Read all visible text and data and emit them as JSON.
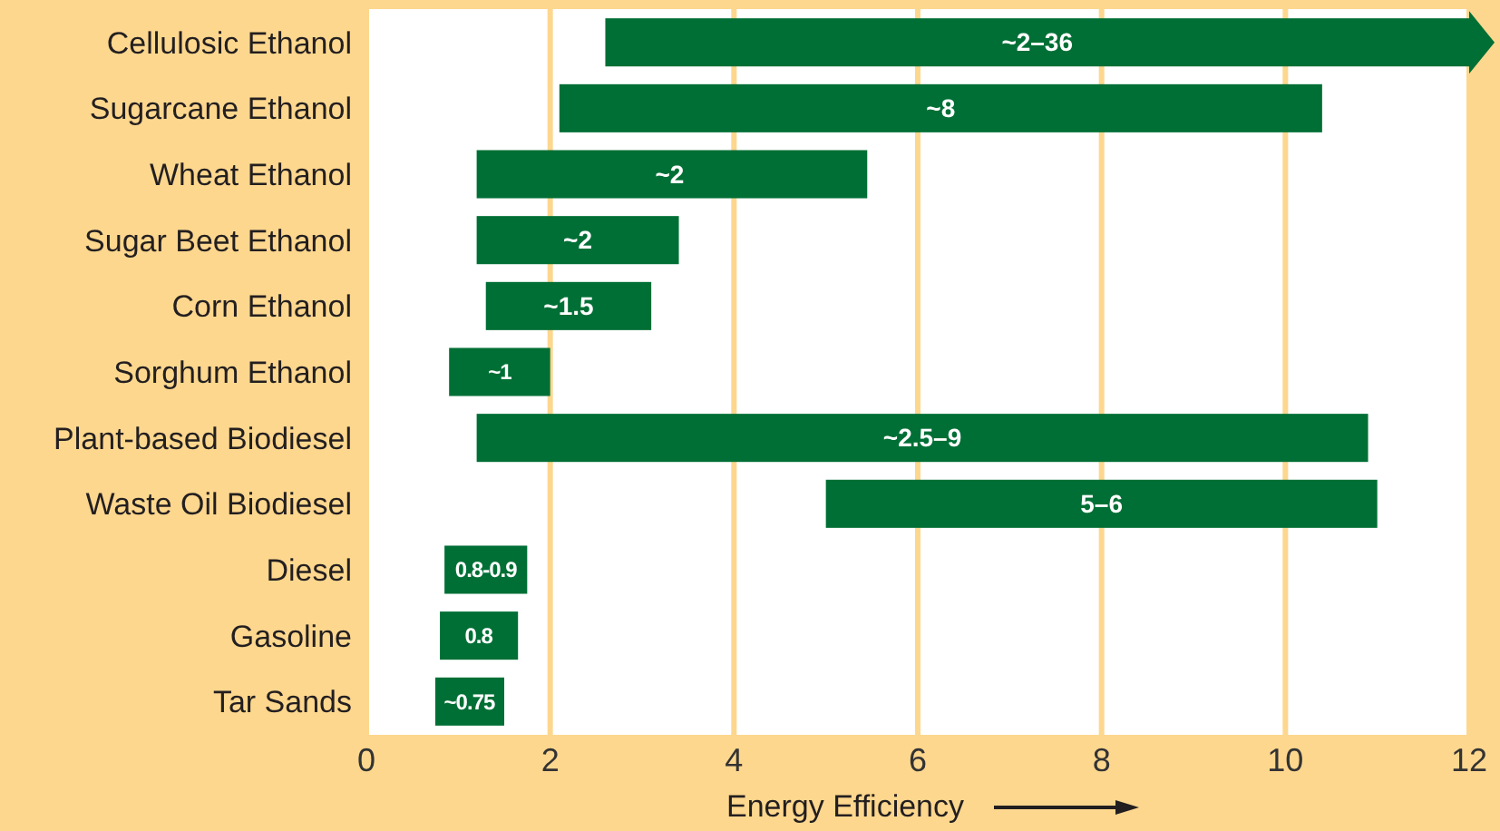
{
  "chart_data": {
    "type": "bar",
    "orientation": "horizontal",
    "xlabel": "Energy Efficiency",
    "categories": [
      "Cellulosic Ethanol",
      "Sugarcane Ethanol",
      "Wheat Ethanol",
      "Sugar Beet Ethanol",
      "Corn Ethanol",
      "Sorghum Ethanol",
      "Plant-based Biodiesel",
      "Waste Oil Biodiesel",
      "Diesel",
      "Gasoline",
      "Tar Sands"
    ],
    "base": [
      2.6,
      2.1,
      1.2,
      1.2,
      1.3,
      0.9,
      1.2,
      5,
      0.85,
      0.8,
      0.75
    ],
    "values": [
      9.4,
      8.3,
      4.25,
      2.2,
      1.8,
      1.1,
      9.7,
      6,
      0.9,
      0.85,
      0.75
    ],
    "annotations": [
      {
        "text": "~2–36",
        "x": 7.3,
        "y": "Cellulosic Ethanol"
      },
      {
        "text": "~8",
        "x": 6.25,
        "y": "Sugarcane Ethanol"
      },
      {
        "text": "~2",
        "x": 3.3,
        "y": "Wheat Ethanol"
      },
      {
        "text": "~2",
        "x": 2.3,
        "y": "Sugar Beet Ethanol"
      },
      {
        "text": "~1.5",
        "x": 2.2,
        "y": "Corn Ethanol"
      },
      {
        "text": "~1",
        "x": 1.45,
        "y": "Sorghum Ethanol"
      },
      {
        "text": "~2.5–9",
        "x": 6.05,
        "y": "Plant-based Biodiesel"
      },
      {
        "text": "5–6",
        "x": 8,
        "y": "Waste Oil Biodiesel"
      },
      {
        "text": "0.8-0.9",
        "x": 1.3,
        "y": "Diesel"
      },
      {
        "text": "0.8",
        "x": 1.22,
        "y": "Gasoline"
      },
      {
        "text": "~0.75",
        "x": 1.12,
        "y": "Tar Sands"
      }
    ],
    "color": "#006f35",
    "xlim": [
      0,
      12
    ],
    "xticks": [
      0,
      2,
      4,
      6,
      8,
      10,
      12
    ],
    "grid": "x"
  }
}
